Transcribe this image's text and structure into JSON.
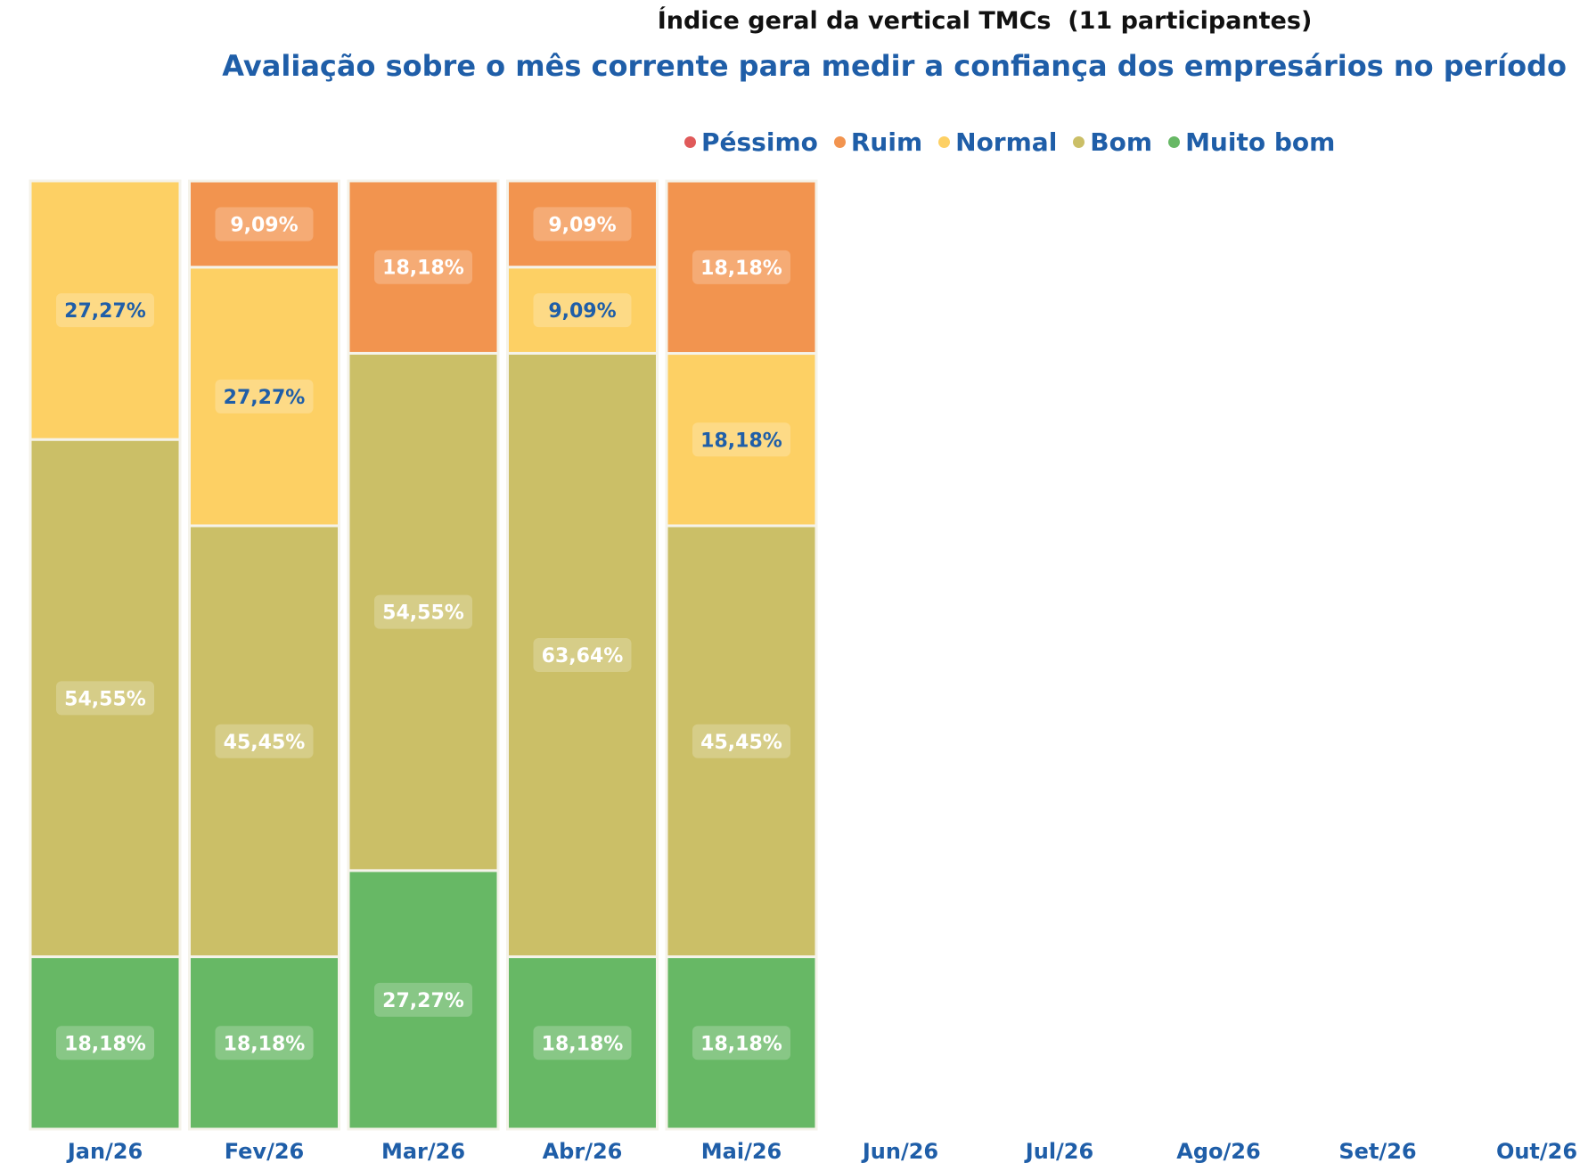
{
  "title": "Índice geral da vertical TMCs  (11 participantes)",
  "subtitle": "Avaliação sobre o mês corrente para medir a confiança dos empresários no período",
  "legend": [
    {
      "name": "Péssimo",
      "color": "#e05a5a"
    },
    {
      "name": "Ruim",
      "color": "#f2944f"
    },
    {
      "name": "Normal",
      "color": "#fdd064"
    },
    {
      "name": "Bom",
      "color": "#cbbf67"
    },
    {
      "name": "Muito bom",
      "color": "#67b865"
    }
  ],
  "chart_data": {
    "type": "bar",
    "stacked": true,
    "normalized": true,
    "title": "Índice geral da vertical TMCs  (11 participantes)",
    "subtitle": "Avaliação sobre o mês corrente para medir a confiança dos empresários no período",
    "categories": [
      "Jan/26",
      "Fev/26",
      "Mar/26",
      "Abr/26",
      "Mai/26",
      "Jun/26",
      "Jul/26",
      "Ago/26",
      "Set/26",
      "Out/26"
    ],
    "series": [
      {
        "name": "Muito bom",
        "color": "#67b865",
        "values": [
          18.18,
          18.18,
          27.27,
          18.18,
          18.18,
          null,
          null,
          null,
          null,
          null
        ],
        "labels": [
          "18,18%",
          "18,18%",
          "27,27%",
          "18,18%",
          "18,18%",
          "",
          "",
          "",
          "",
          ""
        ]
      },
      {
        "name": "Bom",
        "color": "#cbbf67",
        "values": [
          54.55,
          45.45,
          54.55,
          63.64,
          45.45,
          null,
          null,
          null,
          null,
          null
        ],
        "labels": [
          "54,55%",
          "45,45%",
          "54,55%",
          "63,64%",
          "45,45%",
          "",
          "",
          "",
          "",
          ""
        ]
      },
      {
        "name": "Normal",
        "color": "#fdd064",
        "values": [
          27.27,
          27.27,
          0,
          9.09,
          18.18,
          null,
          null,
          null,
          null,
          null
        ],
        "labels": [
          "27,27%",
          "27,27%",
          "",
          "9,09%",
          "18,18%",
          "",
          "",
          "",
          "",
          ""
        ]
      },
      {
        "name": "Ruim",
        "color": "#f2944f",
        "values": [
          0,
          9.09,
          18.18,
          9.09,
          18.18,
          null,
          null,
          null,
          null,
          null
        ],
        "labels": [
          "",
          "9,09%",
          "18,18%",
          "9,09%",
          "18,18%",
          "",
          "",
          "",
          "",
          ""
        ]
      },
      {
        "name": "Péssimo",
        "color": "#e05a5a",
        "values": [
          0,
          0,
          0,
          0,
          0,
          null,
          null,
          null,
          null,
          null
        ],
        "labels": [
          "",
          "",
          "",
          "",
          "",
          "",
          "",
          "",
          "",
          ""
        ]
      }
    ],
    "ylim": [
      0,
      100
    ],
    "grid": false,
    "legend_position": "top"
  }
}
